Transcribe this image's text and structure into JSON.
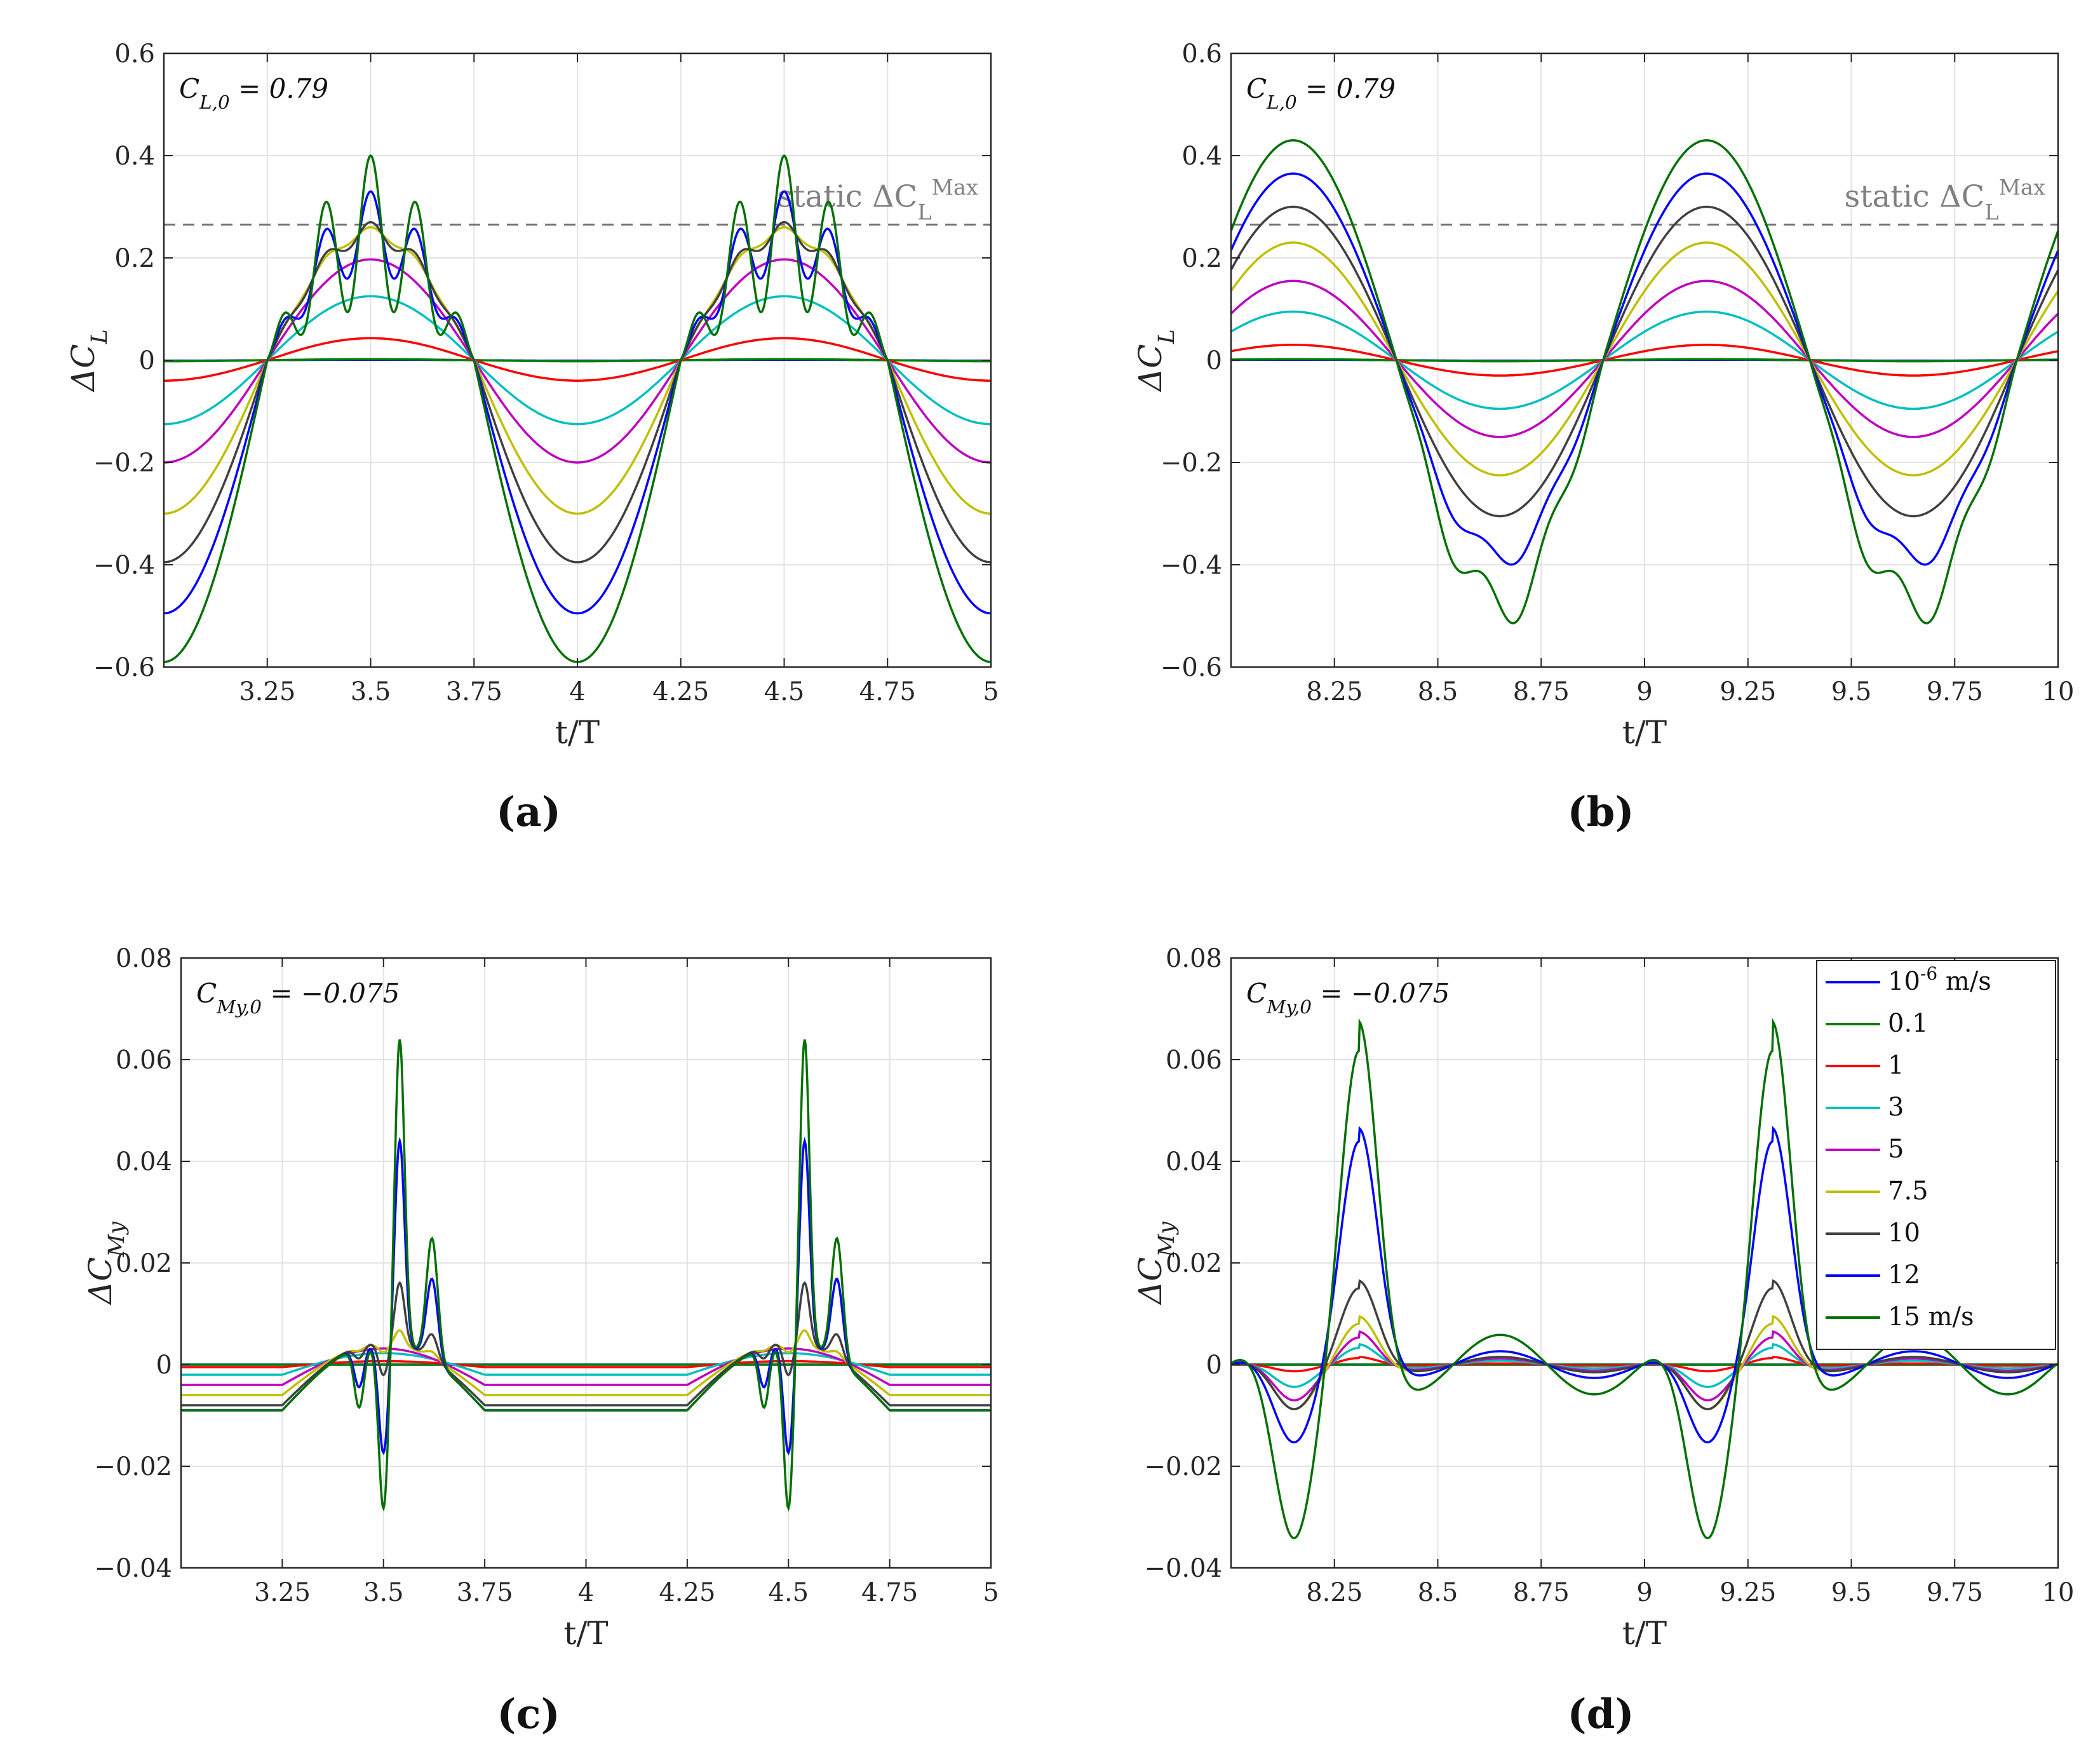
{
  "chart_data": [
    {
      "type": "line",
      "panel": "a",
      "caption": "(a)",
      "xlabel": "t/T",
      "ylabel": "ΔC_L",
      "xlim": [
        3.0,
        5.0
      ],
      "ylim": [
        -0.6,
        0.6
      ],
      "xticks": [
        3.25,
        3.5,
        3.75,
        4,
        4.25,
        4.5,
        4.75,
        5
      ],
      "xtick_labels": [
        "3.25",
        "3.5",
        "3.75",
        "4",
        "4.25",
        "4.5",
        "4.75",
        "5"
      ],
      "yticks": [
        -0.6,
        -0.4,
        -0.2,
        0,
        0.2,
        0.4,
        0.6
      ],
      "ytick_labels": [
        "−0.6",
        "−0.4",
        "−0.2",
        "0",
        "0.2",
        "0.4",
        "0.6"
      ],
      "grid": true,
      "annotation": "C_{L,0} = 0.79",
      "static_label": "static ΔC_L^{Max}",
      "static_value": 0.265,
      "kind": "CL",
      "phase": 0.25,
      "series": [
        {
          "name": "10^-6 m/s",
          "color": "#0000ff",
          "amp_pos": 0.001,
          "amp_neg": 0.001,
          "osc": 0
        },
        {
          "name": "0.1",
          "color": "#008000",
          "amp_pos": 0.002,
          "amp_neg": 0.002,
          "osc": 0
        },
        {
          "name": "1",
          "color": "#ff0000",
          "amp_pos": 0.043,
          "amp_neg": 0.04,
          "osc": 0
        },
        {
          "name": "3",
          "color": "#00bfbf",
          "amp_pos": 0.125,
          "amp_neg": 0.125,
          "osc": 0
        },
        {
          "name": "5",
          "color": "#bf00bf",
          "amp_pos": 0.197,
          "amp_neg": 0.2,
          "osc": 0
        },
        {
          "name": "7.5",
          "color": "#bfbf00",
          "amp_pos": 0.25,
          "amp_neg": 0.3,
          "osc": 0.01
        },
        {
          "name": "10",
          "color": "#404040",
          "amp_pos": 0.25,
          "amp_neg": 0.395,
          "osc": 0.02
        },
        {
          "name": "12",
          "color": "#0000ff",
          "amp_pos": 0.25,
          "amp_neg": 0.495,
          "osc": 0.08
        },
        {
          "name": "15 m/s",
          "color": "#007000",
          "amp_pos": 0.25,
          "amp_neg": 0.59,
          "osc": 0.15
        }
      ]
    },
    {
      "type": "line",
      "panel": "b",
      "caption": "(b)",
      "xlabel": "t/T",
      "ylabel": "ΔC_L",
      "xlim": [
        8.0,
        10.0
      ],
      "ylim": [
        -0.6,
        0.6
      ],
      "xticks": [
        8.25,
        8.5,
        8.75,
        9,
        9.25,
        9.5,
        9.75,
        10
      ],
      "xtick_labels": [
        "8.25",
        "8.5",
        "8.75",
        "9",
        "9.25",
        "9.5",
        "9.75",
        "10"
      ],
      "yticks": [
        -0.6,
        -0.4,
        -0.2,
        0,
        0.2,
        0.4,
        0.6
      ],
      "ytick_labels": [
        "−0.6",
        "−0.4",
        "−0.2",
        "0",
        "0.2",
        "0.4",
        "0.6"
      ],
      "grid": true,
      "annotation": "C_{L,0} = 0.79",
      "static_label": "static ΔC_L^{Max}",
      "static_value": 0.265,
      "kind": "CL_b",
      "phase": 0.9,
      "series": [
        {
          "name": "10^-6 m/s",
          "color": "#0000ff",
          "amp_pos": 0.001,
          "amp_neg": 0.001,
          "osc": 0
        },
        {
          "name": "0.1",
          "color": "#008000",
          "amp_pos": 0.002,
          "amp_neg": 0.002,
          "osc": 0
        },
        {
          "name": "1",
          "color": "#ff0000",
          "amp_pos": 0.03,
          "amp_neg": 0.03,
          "osc": 0
        },
        {
          "name": "3",
          "color": "#00bfbf",
          "amp_pos": 0.095,
          "amp_neg": 0.095,
          "osc": 0
        },
        {
          "name": "5",
          "color": "#bf00bf",
          "amp_pos": 0.155,
          "amp_neg": 0.15,
          "osc": 0
        },
        {
          "name": "7.5",
          "color": "#bfbf00",
          "amp_pos": 0.23,
          "amp_neg": 0.225,
          "osc": 0
        },
        {
          "name": "10",
          "color": "#404040",
          "amp_pos": 0.3,
          "amp_neg": 0.305,
          "osc": 0
        },
        {
          "name": "12",
          "color": "#0000ff",
          "amp_pos": 0.365,
          "amp_neg": 0.385,
          "osc": 0.03
        },
        {
          "name": "15 m/s",
          "color": "#007000",
          "amp_pos": 0.43,
          "amp_neg": 0.48,
          "osc": 0.06
        }
      ]
    },
    {
      "type": "line",
      "panel": "c",
      "caption": "(c)",
      "xlabel": "t/T",
      "ylabel": "ΔC_My",
      "xlim": [
        3.0,
        5.0
      ],
      "ylim": [
        -0.04,
        0.08
      ],
      "xticks": [
        3.25,
        3.5,
        3.75,
        4,
        4.25,
        4.5,
        4.75,
        5
      ],
      "xtick_labels": [
        "3.25",
        "3.5",
        "3.75",
        "4",
        "4.25",
        "4.5",
        "4.75",
        "5"
      ],
      "yticks": [
        -0.04,
        -0.02,
        0,
        0.02,
        0.04,
        0.06,
        0.08
      ],
      "ytick_labels": [
        "−0.04",
        "−0.02",
        "0",
        "0.02",
        "0.04",
        "0.06",
        "0.08"
      ],
      "grid": true,
      "annotation": "C_{My,0} = −0.075",
      "kind": "CM",
      "phase": 0.25,
      "series": [
        {
          "name": "10^-6 m/s",
          "color": "#0000ff",
          "base": 0.0,
          "amp": 0.0,
          "spike": 0
        },
        {
          "name": "0.1",
          "color": "#008000",
          "base": 0.0,
          "amp": 0.0,
          "spike": 0
        },
        {
          "name": "1",
          "color": "#ff0000",
          "base": -0.0005,
          "amp": 0.0015,
          "spike": 0
        },
        {
          "name": "3",
          "color": "#00bfbf",
          "base": -0.002,
          "amp": 0.005,
          "spike": 0
        },
        {
          "name": "5",
          "color": "#bf00bf",
          "base": -0.004,
          "amp": 0.007,
          "spike": 0
        },
        {
          "name": "7.5",
          "color": "#bfbf00",
          "base": -0.006,
          "amp": 0.009,
          "spike": 0.003
        },
        {
          "name": "10",
          "color": "#404040",
          "base": -0.008,
          "amp": 0.01,
          "spike": 0.012
        },
        {
          "name": "12",
          "color": "#0000ff",
          "base": -0.009,
          "amp": 0.01,
          "spike": 0.04
        },
        {
          "name": "15 m/s",
          "color": "#007000",
          "base": -0.009,
          "amp": 0.01,
          "spike": 0.06
        }
      ]
    },
    {
      "type": "line",
      "panel": "d",
      "caption": "(d)",
      "xlabel": "t/T",
      "ylabel": "ΔC_My",
      "xlim": [
        8.0,
        10.0
      ],
      "ylim": [
        -0.04,
        0.08
      ],
      "xticks": [
        8.25,
        8.5,
        8.75,
        9,
        9.25,
        9.5,
        9.75,
        10
      ],
      "xtick_labels": [
        "8.25",
        "8.5",
        "8.75",
        "9",
        "9.25",
        "9.5",
        "9.75",
        "10"
      ],
      "yticks": [
        -0.04,
        -0.02,
        0,
        0.02,
        0.04,
        0.06,
        0.08
      ],
      "ytick_labels": [
        "−0.04",
        "−0.02",
        "0",
        "0.02",
        "0.04",
        "0.06",
        "0.08"
      ],
      "grid": true,
      "annotation": "C_{My,0} = −0.075",
      "kind": "CM_d",
      "phase": 0.31,
      "legend": {
        "placement": "top-right",
        "entries": [
          "10^-6 m/s",
          "0.1",
          "1",
          "3",
          "5",
          "7.5",
          "10",
          "12",
          "15 m/s"
        ]
      },
      "series": [
        {
          "name": "10^-6 m/s",
          "color": "#0000ff",
          "peak": 0.0,
          "trough": 0.0
        },
        {
          "name": "0.1",
          "color": "#008000",
          "peak": 0.0,
          "trough": 0.0
        },
        {
          "name": "1",
          "color": "#ff0000",
          "peak": 0.0015,
          "trough": -0.0015
        },
        {
          "name": "3",
          "color": "#00bfbf",
          "peak": 0.004,
          "trough": -0.005
        },
        {
          "name": "5",
          "color": "#bf00bf",
          "peak": 0.0065,
          "trough": -0.008
        },
        {
          "name": "7.5",
          "color": "#bfbf00",
          "peak": 0.0095,
          "trough": -0.01
        },
        {
          "name": "10",
          "color": "#404040",
          "peak": 0.0165,
          "trough": -0.01
        },
        {
          "name": "12",
          "color": "#0000ff",
          "peak": 0.0465,
          "trough": -0.0175
        },
        {
          "name": "15 m/s",
          "color": "#007000",
          "peak": 0.0675,
          "trough": -0.039
        }
      ]
    }
  ]
}
